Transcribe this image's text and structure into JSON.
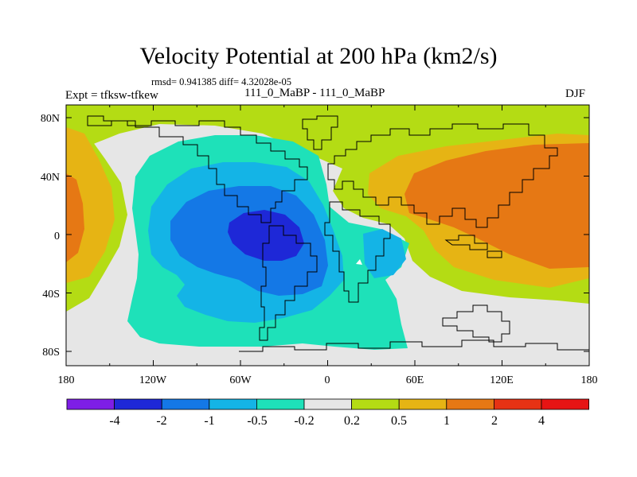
{
  "title": "Velocity Potential at 200 hPa (km2/s)",
  "stats": "rmsd= 0.941385 diff= 4.32028e-05",
  "left_label": "Expt = tfksw-tfkew",
  "center_label": "111_0_MaBP - 111_0_MaBP",
  "right_label": "DJF",
  "lat_labels": [
    "80N",
    "40N",
    "0",
    "40S",
    "80S"
  ],
  "lon_labels": [
    "180",
    "120W",
    "60W",
    "0",
    "60E",
    "120E",
    "180"
  ],
  "colorbar": {
    "labels": [
      "-4",
      "-2",
      "-1",
      "-0.5",
      "-0.2",
      "0.2",
      "0.5",
      "1",
      "2",
      "4"
    ],
    "colors": [
      "#7e1ee6",
      "#1e28d7",
      "#1478e6",
      "#14b4e6",
      "#1ee1b9",
      "#e6e6e6",
      "#b4dc14",
      "#e6b414",
      "#e67814",
      "#e63214",
      "#e61414"
    ]
  },
  "field_colors": {
    "bg": "#e6e6e6",
    "pos1": "#b4dc14",
    "pos2": "#e6b414",
    "pos3": "#e67814",
    "neg1": "#1ee1b9",
    "neg2": "#14b4e6",
    "neg3": "#1478e6",
    "neg4": "#1e28d7"
  }
}
